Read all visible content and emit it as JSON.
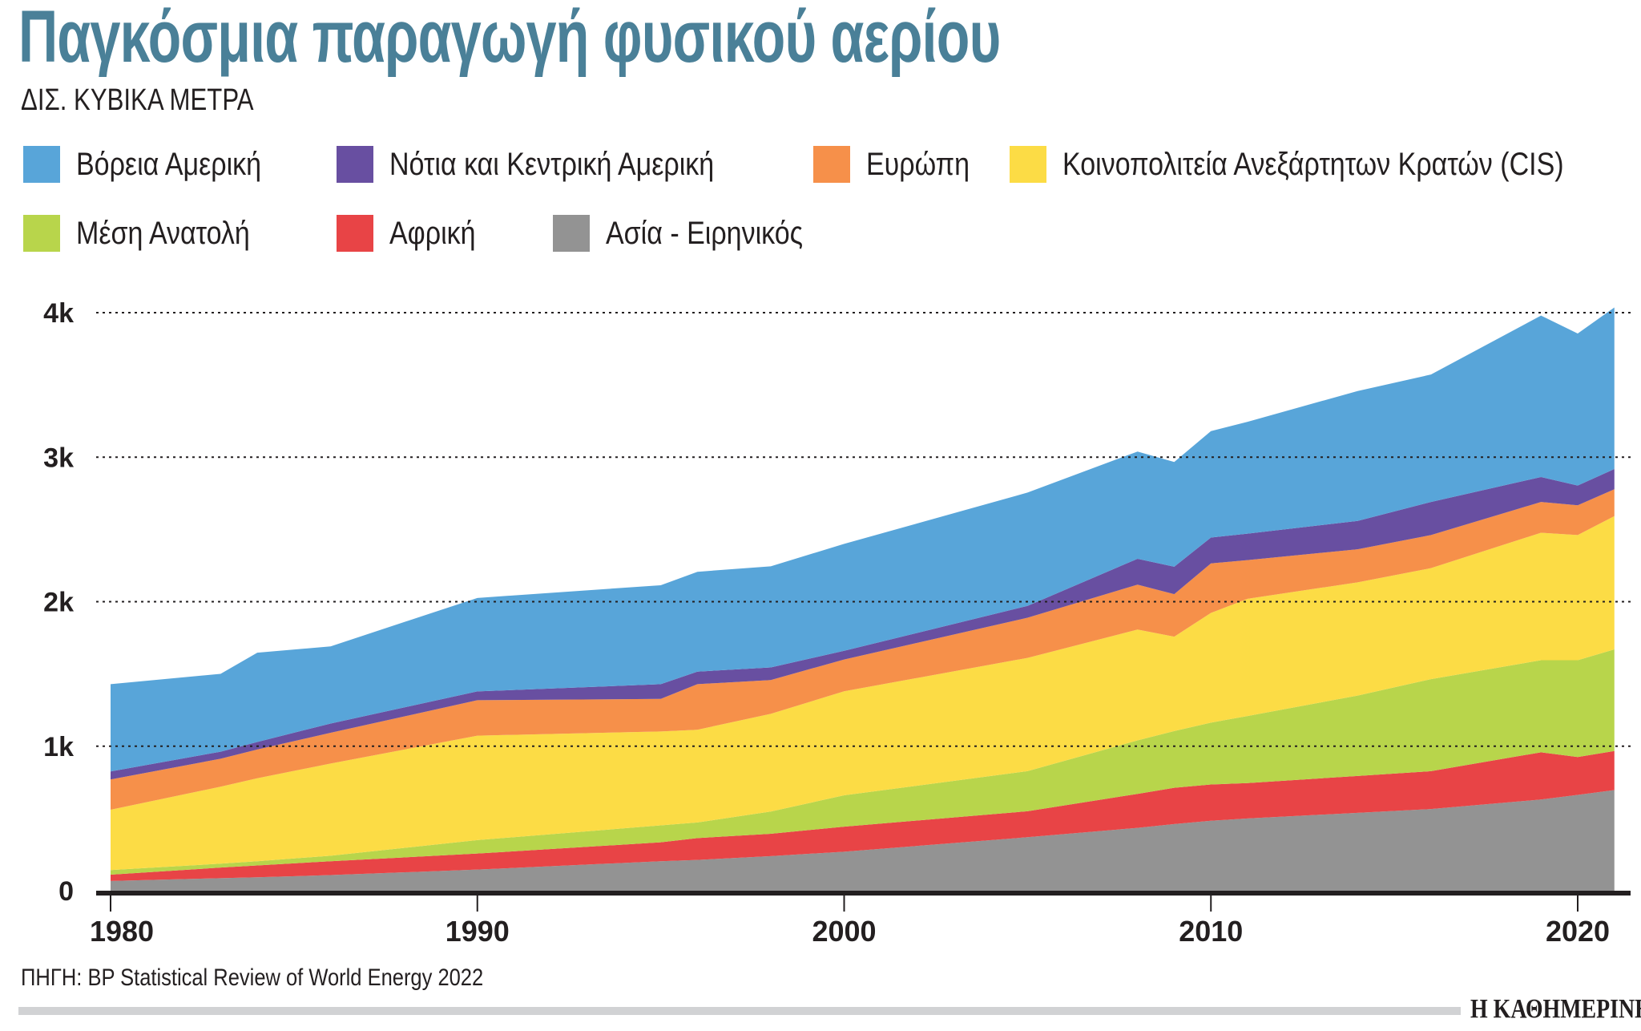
{
  "title": "Παγκόσμια παραγωγή φυσικού αερίου",
  "subtitle": "ΔΙΣ. ΚΥΒΙΚΑ ΜΕΤΡΑ",
  "source": "ΠΗΓΗ: BP Statistical Review of World Energy 2022",
  "logo": "Η ΚΑΘΗΜΕΡΙΝΗ",
  "chart_data": {
    "type": "area",
    "stacked": true,
    "title": "Παγκόσμια παραγωγή φυσικού αερίου",
    "ylabel": "ΔΙΣ. ΚΥΒΙΚΑ ΜΕΤΡΑ",
    "xlim": [
      1980,
      2021
    ],
    "ylim": [
      0,
      4000
    ],
    "x_ticks": [
      1980,
      1990,
      2000,
      2010,
      2020
    ],
    "x_tick_labels": [
      "1980",
      "1990",
      "2000",
      "2010",
      "2020"
    ],
    "y_ticks": [
      0,
      1000,
      2000,
      3000,
      4000
    ],
    "y_tick_labels": [
      "0",
      "1k",
      "2k",
      "3k",
      "4k"
    ],
    "grid": "horizontal dotted",
    "legend_placement": "top",
    "x": [
      1980,
      1983,
      1984,
      1986,
      1990,
      1995,
      1996,
      1998,
      2000,
      2005,
      2008,
      2009,
      2010,
      2011,
      2014,
      2016,
      2019,
      2020,
      2021
    ],
    "series": [
      {
        "name": "Ασία - Ειρηνικός",
        "color": "#939393",
        "values": [
          67,
          87,
          93,
          108,
          146,
          204,
          213,
          239,
          270,
          370,
          435,
          461,
          484,
          500,
          539,
          565,
          631,
          663,
          696
        ]
      },
      {
        "name": "Αφρική",
        "color": "#e84446",
        "values": [
          44,
          73,
          82,
          96,
          111,
          131,
          151,
          155,
          173,
          180,
          235,
          251,
          251,
          245,
          255,
          262,
          327,
          262,
          271
        ]
      },
      {
        "name": "Μέση Ανατολή",
        "color": "#b8d54b",
        "values": [
          32,
          27,
          29,
          38,
          93,
          117,
          108,
          154,
          217,
          277,
          370,
          393,
          428,
          464,
          556,
          637,
          637,
          670,
          703
        ]
      },
      {
        "name": "Κοινοπολιτεία Ανεξάρτητων Κρατών (CIS)",
        "color": "#fcdc45",
        "values": [
          417,
          533,
          574,
          638,
          723,
          650,
          642,
          676,
          720,
          784,
          767,
          653,
          759,
          811,
          784,
          768,
          882,
          866,
          922
        ]
      },
      {
        "name": "Ευρώπη",
        "color": "#f6904a",
        "values": [
          210,
          193,
          199,
          213,
          245,
          225,
          315,
          234,
          220,
          278,
          311,
          294,
          343,
          268,
          229,
          229,
          213,
          206,
          186
        ]
      },
      {
        "name": "Νότια και Κεντρική Αμερική",
        "color": "#684fa1",
        "values": [
          55,
          49,
          52,
          64,
          61,
          102,
          87,
          87,
          60,
          82,
          179,
          190,
          179,
          183,
          196,
          229,
          173,
          137,
          140
        ]
      },
      {
        "name": "Βόρεια Αμερική",
        "color": "#58a5d9",
        "values": [
          604,
          539,
          618,
          534,
          647,
          685,
          691,
          700,
          740,
          784,
          742,
          725,
          736,
          774,
          899,
          882,
          1117,
          1052,
          1118
        ]
      }
    ]
  },
  "legend": [
    {
      "label": "Βόρεια Αμερική",
      "color": "#58a5d9"
    },
    {
      "label": "Νότια και Κεντρική Αμερική",
      "color": "#684fa1"
    },
    {
      "label": "Ευρώπη",
      "color": "#f6904a"
    },
    {
      "label": "Κοινοπολιτεία Ανεξάρτητων Κρατών (CIS)",
      "color": "#fcdc45"
    },
    {
      "label": "Μέση Ανατολή",
      "color": "#b8d54b"
    },
    {
      "label": "Αφρική",
      "color": "#e84446"
    },
    {
      "label": "Ασία - Ειρηνικός",
      "color": "#939393"
    }
  ]
}
